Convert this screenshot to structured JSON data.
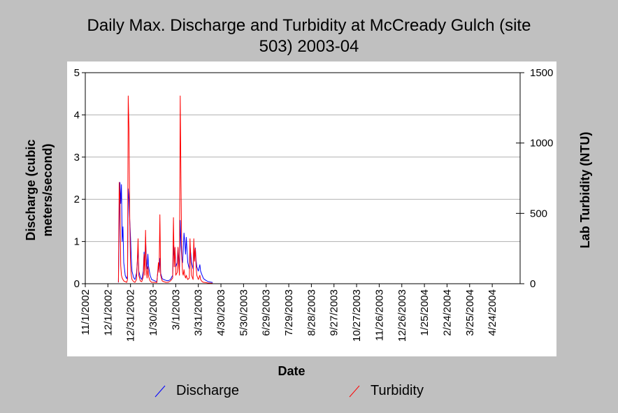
{
  "chart_data": {
    "type": "line",
    "title_lines": [
      "Daily Max. Discharge and Turbidity at McCready Gulch (site",
      "503) 2003-04"
    ],
    "xlabel": "Date",
    "ylabel_left_lines": [
      "Discharge (cubic",
      "meters/second)"
    ],
    "ylabel_right": "Lab Turbidity (NTU)",
    "x_ticks": [
      "11/1/2002",
      "12/1/2002",
      "12/31/2002",
      "1/30/2003",
      "3/1/2003",
      "3/31/2003",
      "4/30/2003",
      "5/30/2003",
      "6/29/2003",
      "7/29/2003",
      "8/28/2003",
      "9/27/2003",
      "10/27/2003",
      "11/26/2003",
      "12/26/2003",
      "1/25/2004",
      "2/24/2004",
      "3/25/2004",
      "4/24/2004"
    ],
    "x_range": [
      "11/1/2002",
      "5/31/2004"
    ],
    "ylim_left": [
      0,
      5
    ],
    "yticks_left": [
      0,
      1,
      2,
      3,
      4,
      5
    ],
    "ylim_right": [
      0,
      1500
    ],
    "yticks_right": [
      0,
      500,
      1000,
      1500
    ],
    "grid": true,
    "legend_position": "bottom",
    "series": [
      {
        "name": "Discharge",
        "axis": "left",
        "color": "#0000ff",
        "points": [
          [
            "12/15/2002",
            0.03
          ],
          [
            "12/16/2002",
            1.4
          ],
          [
            "12/17/2002",
            2.4
          ],
          [
            "12/18/2002",
            1.9
          ],
          [
            "12/19/2002",
            2.35
          ],
          [
            "12/20/2002",
            1.0
          ],
          [
            "12/21/2002",
            1.35
          ],
          [
            "12/22/2002",
            0.5
          ],
          [
            "12/23/2002",
            0.35
          ],
          [
            "12/24/2002",
            0.2
          ],
          [
            "12/25/2002",
            0.15
          ],
          [
            "12/26/2002",
            0.12
          ],
          [
            "12/27/2002",
            0.2
          ],
          [
            "12/28/2002",
            2.25
          ],
          [
            "12/29/2002",
            2.0
          ],
          [
            "12/30/2002",
            1.5
          ],
          [
            "12/31/2002",
            1.1
          ],
          [
            "1/1/2003",
            0.6
          ],
          [
            "1/2/2003",
            0.3
          ],
          [
            "1/4/2003",
            0.15
          ],
          [
            "1/6/2003",
            0.1
          ],
          [
            "1/8/2003",
            0.25
          ],
          [
            "1/9/2003",
            0.5
          ],
          [
            "1/10/2003",
            0.85
          ],
          [
            "1/11/2003",
            0.3
          ],
          [
            "1/13/2003",
            0.15
          ],
          [
            "1/15/2003",
            0.1
          ],
          [
            "1/17/2003",
            0.3
          ],
          [
            "1/18/2003",
            0.75
          ],
          [
            "1/19/2003",
            0.4
          ],
          [
            "1/20/2003",
            1.1
          ],
          [
            "1/21/2003",
            0.6
          ],
          [
            "1/22/2003",
            0.35
          ],
          [
            "1/23/2003",
            0.7
          ],
          [
            "1/24/2003",
            0.4
          ],
          [
            "1/26/2003",
            0.2
          ],
          [
            "1/28/2003",
            0.1
          ],
          [
            "2/1/2003",
            0.07
          ],
          [
            "2/4/2003",
            0.05
          ],
          [
            "2/6/2003",
            0.45
          ],
          [
            "2/7/2003",
            0.3
          ],
          [
            "2/8/2003",
            0.6
          ],
          [
            "2/9/2003",
            0.25
          ],
          [
            "2/11/2003",
            0.12
          ],
          [
            "2/13/2003",
            0.1
          ],
          [
            "2/16/2003",
            0.08
          ],
          [
            "2/19/2003",
            0.07
          ],
          [
            "2/22/2003",
            0.1
          ],
          [
            "2/25/2003",
            0.2
          ],
          [
            "2/26/2003",
            0.9
          ],
          [
            "2/27/2003",
            0.6
          ],
          [
            "2/28/2003",
            0.85
          ],
          [
            "3/1/2003",
            0.4
          ],
          [
            "3/3/2003",
            0.5
          ],
          [
            "3/4/2003",
            0.85
          ],
          [
            "3/5/2003",
            0.6
          ],
          [
            "3/6/2003",
            0.4
          ],
          [
            "3/7/2003",
            1.5
          ],
          [
            "3/8/2003",
            0.9
          ],
          [
            "3/9/2003",
            0.6
          ],
          [
            "3/10/2003",
            0.5
          ],
          [
            "3/11/2003",
            0.8
          ],
          [
            "3/12/2003",
            1.2
          ],
          [
            "3/13/2003",
            1.0
          ],
          [
            "3/14/2003",
            0.7
          ],
          [
            "3/15/2003",
            1.1
          ],
          [
            "3/16/2003",
            0.8
          ],
          [
            "3/17/2003",
            0.5
          ],
          [
            "3/19/2003",
            0.35
          ],
          [
            "3/20/2003",
            0.9
          ],
          [
            "3/21/2003",
            0.7
          ],
          [
            "3/22/2003",
            0.5
          ],
          [
            "3/24/2003",
            0.35
          ],
          [
            "3/25/2003",
            0.9
          ],
          [
            "3/26/2003",
            0.6
          ],
          [
            "3/27/2003",
            0.85
          ],
          [
            "3/28/2003",
            0.55
          ],
          [
            "3/29/2003",
            0.4
          ],
          [
            "3/31/2003",
            0.3
          ],
          [
            "4/2/2003",
            0.45
          ],
          [
            "4/3/2003",
            0.3
          ],
          [
            "4/5/2003",
            0.2
          ],
          [
            "4/7/2003",
            0.12
          ],
          [
            "4/10/2003",
            0.08
          ],
          [
            "4/13/2003",
            0.05
          ],
          [
            "4/16/2003",
            0.04
          ],
          [
            "4/19/2003",
            0.03
          ]
        ]
      },
      {
        "name": "Turbidity",
        "axis": "right",
        "color": "#ff0000",
        "points": [
          [
            "12/15/2002",
            10
          ],
          [
            "12/16/2002",
            720
          ],
          [
            "12/17/2002",
            600
          ],
          [
            "12/18/2002",
            130
          ],
          [
            "12/19/2002",
            60
          ],
          [
            "12/20/2002",
            40
          ],
          [
            "12/21/2002",
            30
          ],
          [
            "12/22/2002",
            20
          ],
          [
            "12/24/2002",
            15
          ],
          [
            "12/26/2002",
            10
          ],
          [
            "12/27/2002",
            30
          ],
          [
            "12/28/2002",
            1335
          ],
          [
            "12/29/2002",
            1100
          ],
          [
            "12/30/2002",
            450
          ],
          [
            "12/31/2002",
            130
          ],
          [
            "1/1/2003",
            60
          ],
          [
            "1/2/2003",
            30
          ],
          [
            "1/4/2003",
            15
          ],
          [
            "1/6/2003",
            10
          ],
          [
            "1/8/2003",
            30
          ],
          [
            "1/9/2003",
            160
          ],
          [
            "1/10/2003",
            320
          ],
          [
            "1/11/2003",
            60
          ],
          [
            "1/13/2003",
            20
          ],
          [
            "1/15/2003",
            15
          ],
          [
            "1/17/2003",
            50
          ],
          [
            "1/18/2003",
            210
          ],
          [
            "1/19/2003",
            60
          ],
          [
            "1/20/2003",
            380
          ],
          [
            "1/21/2003",
            100
          ],
          [
            "1/22/2003",
            40
          ],
          [
            "1/23/2003",
            120
          ],
          [
            "1/24/2003",
            50
          ],
          [
            "1/26/2003",
            20
          ],
          [
            "1/28/2003",
            10
          ],
          [
            "2/1/2003",
            10
          ],
          [
            "2/4/2003",
            8
          ],
          [
            "2/6/2003",
            150
          ],
          [
            "2/7/2003",
            80
          ],
          [
            "2/8/2003",
            490
          ],
          [
            "2/9/2003",
            60
          ],
          [
            "2/11/2003",
            20
          ],
          [
            "2/13/2003",
            15
          ],
          [
            "2/16/2003",
            10
          ],
          [
            "2/19/2003",
            10
          ],
          [
            "2/22/2003",
            20
          ],
          [
            "2/25/2003",
            40
          ],
          [
            "2/26/2003",
            470
          ],
          [
            "2/27/2003",
            120
          ],
          [
            "2/28/2003",
            260
          ],
          [
            "3/1/2003",
            60
          ],
          [
            "3/3/2003",
            80
          ],
          [
            "3/4/2003",
            260
          ],
          [
            "3/5/2003",
            120
          ],
          [
            "3/6/2003",
            60
          ],
          [
            "3/7/2003",
            1335
          ],
          [
            "3/8/2003",
            720
          ],
          [
            "3/9/2003",
            200
          ],
          [
            "3/10/2003",
            80
          ],
          [
            "3/11/2003",
            60
          ],
          [
            "3/12/2003",
            100
          ],
          [
            "3/13/2003",
            60
          ],
          [
            "3/14/2003",
            40
          ],
          [
            "3/15/2003",
            60
          ],
          [
            "3/16/2003",
            40
          ],
          [
            "3/17/2003",
            30
          ],
          [
            "3/19/2003",
            40
          ],
          [
            "3/20/2003",
            320
          ],
          [
            "3/21/2003",
            150
          ],
          [
            "3/22/2003",
            60
          ],
          [
            "3/24/2003",
            30
          ],
          [
            "3/25/2003",
            320
          ],
          [
            "3/26/2003",
            160
          ],
          [
            "3/27/2003",
            250
          ],
          [
            "3/28/2003",
            120
          ],
          [
            "3/29/2003",
            60
          ],
          [
            "3/31/2003",
            30
          ],
          [
            "4/2/2003",
            60
          ],
          [
            "4/3/2003",
            30
          ],
          [
            "4/5/2003",
            15
          ],
          [
            "4/7/2003",
            10
          ],
          [
            "4/10/2003",
            8
          ],
          [
            "4/13/2003",
            5
          ],
          [
            "4/16/2003",
            4
          ],
          [
            "4/19/2003",
            3
          ]
        ]
      }
    ]
  }
}
